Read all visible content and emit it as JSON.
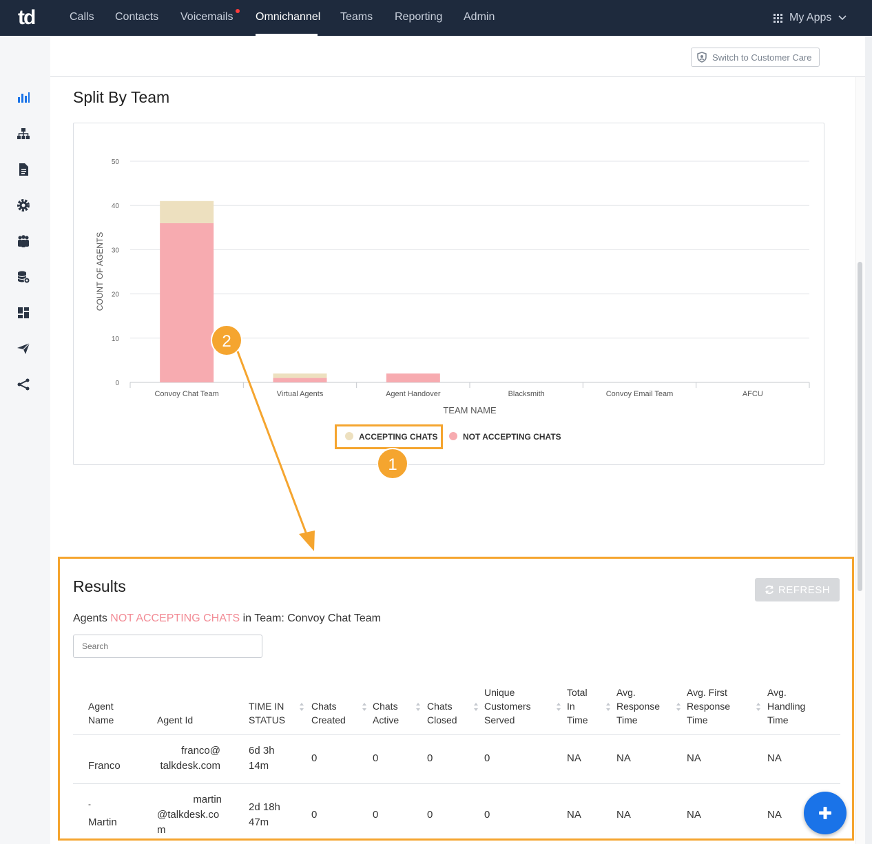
{
  "nav": {
    "logo": "td",
    "items": [
      "Calls",
      "Contacts",
      "Voicemails",
      "Omnichannel",
      "Teams",
      "Reporting",
      "Admin"
    ],
    "active": "Omnichannel",
    "my_apps": "My Apps"
  },
  "sidebar": {
    "icons": [
      "bar-chart-icon",
      "org-chart-icon",
      "document-icon",
      "gear-icon",
      "people-icon",
      "database-gear-icon",
      "dashboard-icon",
      "send-icon",
      "share-icon"
    ]
  },
  "header": {
    "switch_label": "Switch to Customer Care"
  },
  "split": {
    "title": "Split By Team"
  },
  "chart_data": {
    "type": "bar",
    "stacked": true,
    "categories": [
      "Convoy Chat Team",
      "Virtual Agents",
      "Agent Handover",
      "Blacksmith",
      "Convoy Email Team",
      "AFCU"
    ],
    "series": [
      {
        "name": "NOT ACCEPTING CHATS",
        "color": "#f7abb0",
        "values": [
          36,
          1,
          2,
          0,
          0,
          0
        ]
      },
      {
        "name": "ACCEPTING CHATS",
        "color": "#ede0bf",
        "values": [
          5,
          1,
          0,
          0,
          0,
          0
        ]
      }
    ],
    "xlabel": "TEAM NAME",
    "ylabel": "COUNT OF AGENTS",
    "ylim": [
      0,
      50
    ],
    "yticks": [
      0,
      10,
      20,
      30,
      40,
      50
    ],
    "grid": true,
    "legend": "bottom-center"
  },
  "annotations": {
    "badge1": "1",
    "badge2": "2"
  },
  "results": {
    "title": "Results",
    "refresh_label": "REFRESH",
    "subtitle_prefix": "Agents",
    "subtitle_status": "NOT ACCEPTING CHATS",
    "subtitle_suffix": "in Team: Convoy Chat Team",
    "search_placeholder": "Search",
    "columns": [
      [
        "Agent",
        "Name"
      ],
      [
        "Agent Id"
      ],
      [
        "TIME IN",
        "STATUS"
      ],
      [
        "Chats",
        "Created"
      ],
      [
        "Chats",
        "Active"
      ],
      [
        "Chats",
        "Closed"
      ],
      [
        "Unique",
        "Customers",
        "Served"
      ],
      [
        "Total",
        "In",
        "Time"
      ],
      [
        "Avg.",
        "Response",
        "Time"
      ],
      [
        "Avg. First",
        "Response",
        "Time"
      ],
      [
        "Avg.",
        "Handling",
        "Time"
      ]
    ],
    "rows": [
      {
        "name": "Franco",
        "id": [
          "franco@",
          "talkdesk.com"
        ],
        "time": [
          "6d 3h",
          "14m"
        ],
        "created": "0",
        "active": "0",
        "closed": "0",
        "unique": "0",
        "total": "NA",
        "avg_resp": "NA",
        "avg_first": "NA",
        "avg_handle": "NA"
      },
      {
        "name_prefix": "-",
        "name": "Martin",
        "id": [
          "martin",
          "@talkdesk.co",
          "m"
        ],
        "time": [
          "2d 18h",
          "47m"
        ],
        "created": "0",
        "active": "0",
        "closed": "0",
        "unique": "0",
        "total": "NA",
        "avg_resp": "NA",
        "avg_first": "NA",
        "avg_handle": "NA"
      }
    ]
  }
}
